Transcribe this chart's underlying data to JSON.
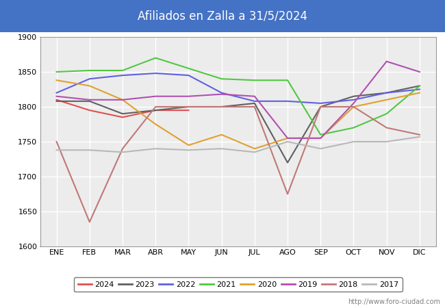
{
  "title": "Afiliados en Zalla a 31/5/2024",
  "title_bg_color": "#4472c4",
  "title_text_color": "white",
  "ylim": [
    1600,
    1900
  ],
  "yticks": [
    1600,
    1650,
    1700,
    1750,
    1800,
    1850,
    1900
  ],
  "months": [
    "ENE",
    "FEB",
    "MAR",
    "ABR",
    "MAY",
    "JUN",
    "JUL",
    "AGO",
    "SEP",
    "OCT",
    "NOV",
    "DIC"
  ],
  "watermark": "http://www.foro-ciudad.com",
  "plot_bg_color": "#ececec",
  "series": {
    "2024": {
      "color": "#e05050",
      "data": [
        1810,
        1795,
        1785,
        1795,
        1795,
        null,
        null,
        null,
        null,
        null,
        null,
        null
      ]
    },
    "2023": {
      "color": "#606060",
      "data": [
        1808,
        1808,
        1790,
        1795,
        1800,
        1800,
        1805,
        1720,
        1800,
        1815,
        1820,
        1830
      ]
    },
    "2022": {
      "color": "#6060e0",
      "data": [
        1820,
        1840,
        1845,
        1848,
        1845,
        1820,
        1808,
        1808,
        1805,
        1810,
        1820,
        1825
      ]
    },
    "2021": {
      "color": "#50c840",
      "data": [
        1850,
        1852,
        1852,
        1870,
        1855,
        1840,
        1838,
        1838,
        1760,
        1770,
        1790,
        1830
      ]
    },
    "2020": {
      "color": "#e0a030",
      "data": [
        1838,
        1830,
        1810,
        1775,
        1745,
        1760,
        1740,
        1755,
        1755,
        1800,
        1810,
        1820
      ]
    },
    "2019": {
      "color": "#b050b0",
      "data": [
        1815,
        1810,
        1810,
        1815,
        1815,
        1818,
        1815,
        1755,
        1755,
        1805,
        1865,
        1850
      ]
    },
    "2018": {
      "color": "#c07878",
      "data": [
        1750,
        1635,
        1740,
        1800,
        1800,
        1800,
        1800,
        1675,
        1800,
        1800,
        1770,
        1760
      ]
    },
    "2017": {
      "color": "#b8b8b8",
      "data": [
        1738,
        1738,
        1735,
        1740,
        1738,
        1740,
        1735,
        1750,
        1740,
        1750,
        1750,
        1757
      ]
    }
  },
  "legend_order": [
    "2024",
    "2023",
    "2022",
    "2021",
    "2020",
    "2019",
    "2018",
    "2017"
  ]
}
